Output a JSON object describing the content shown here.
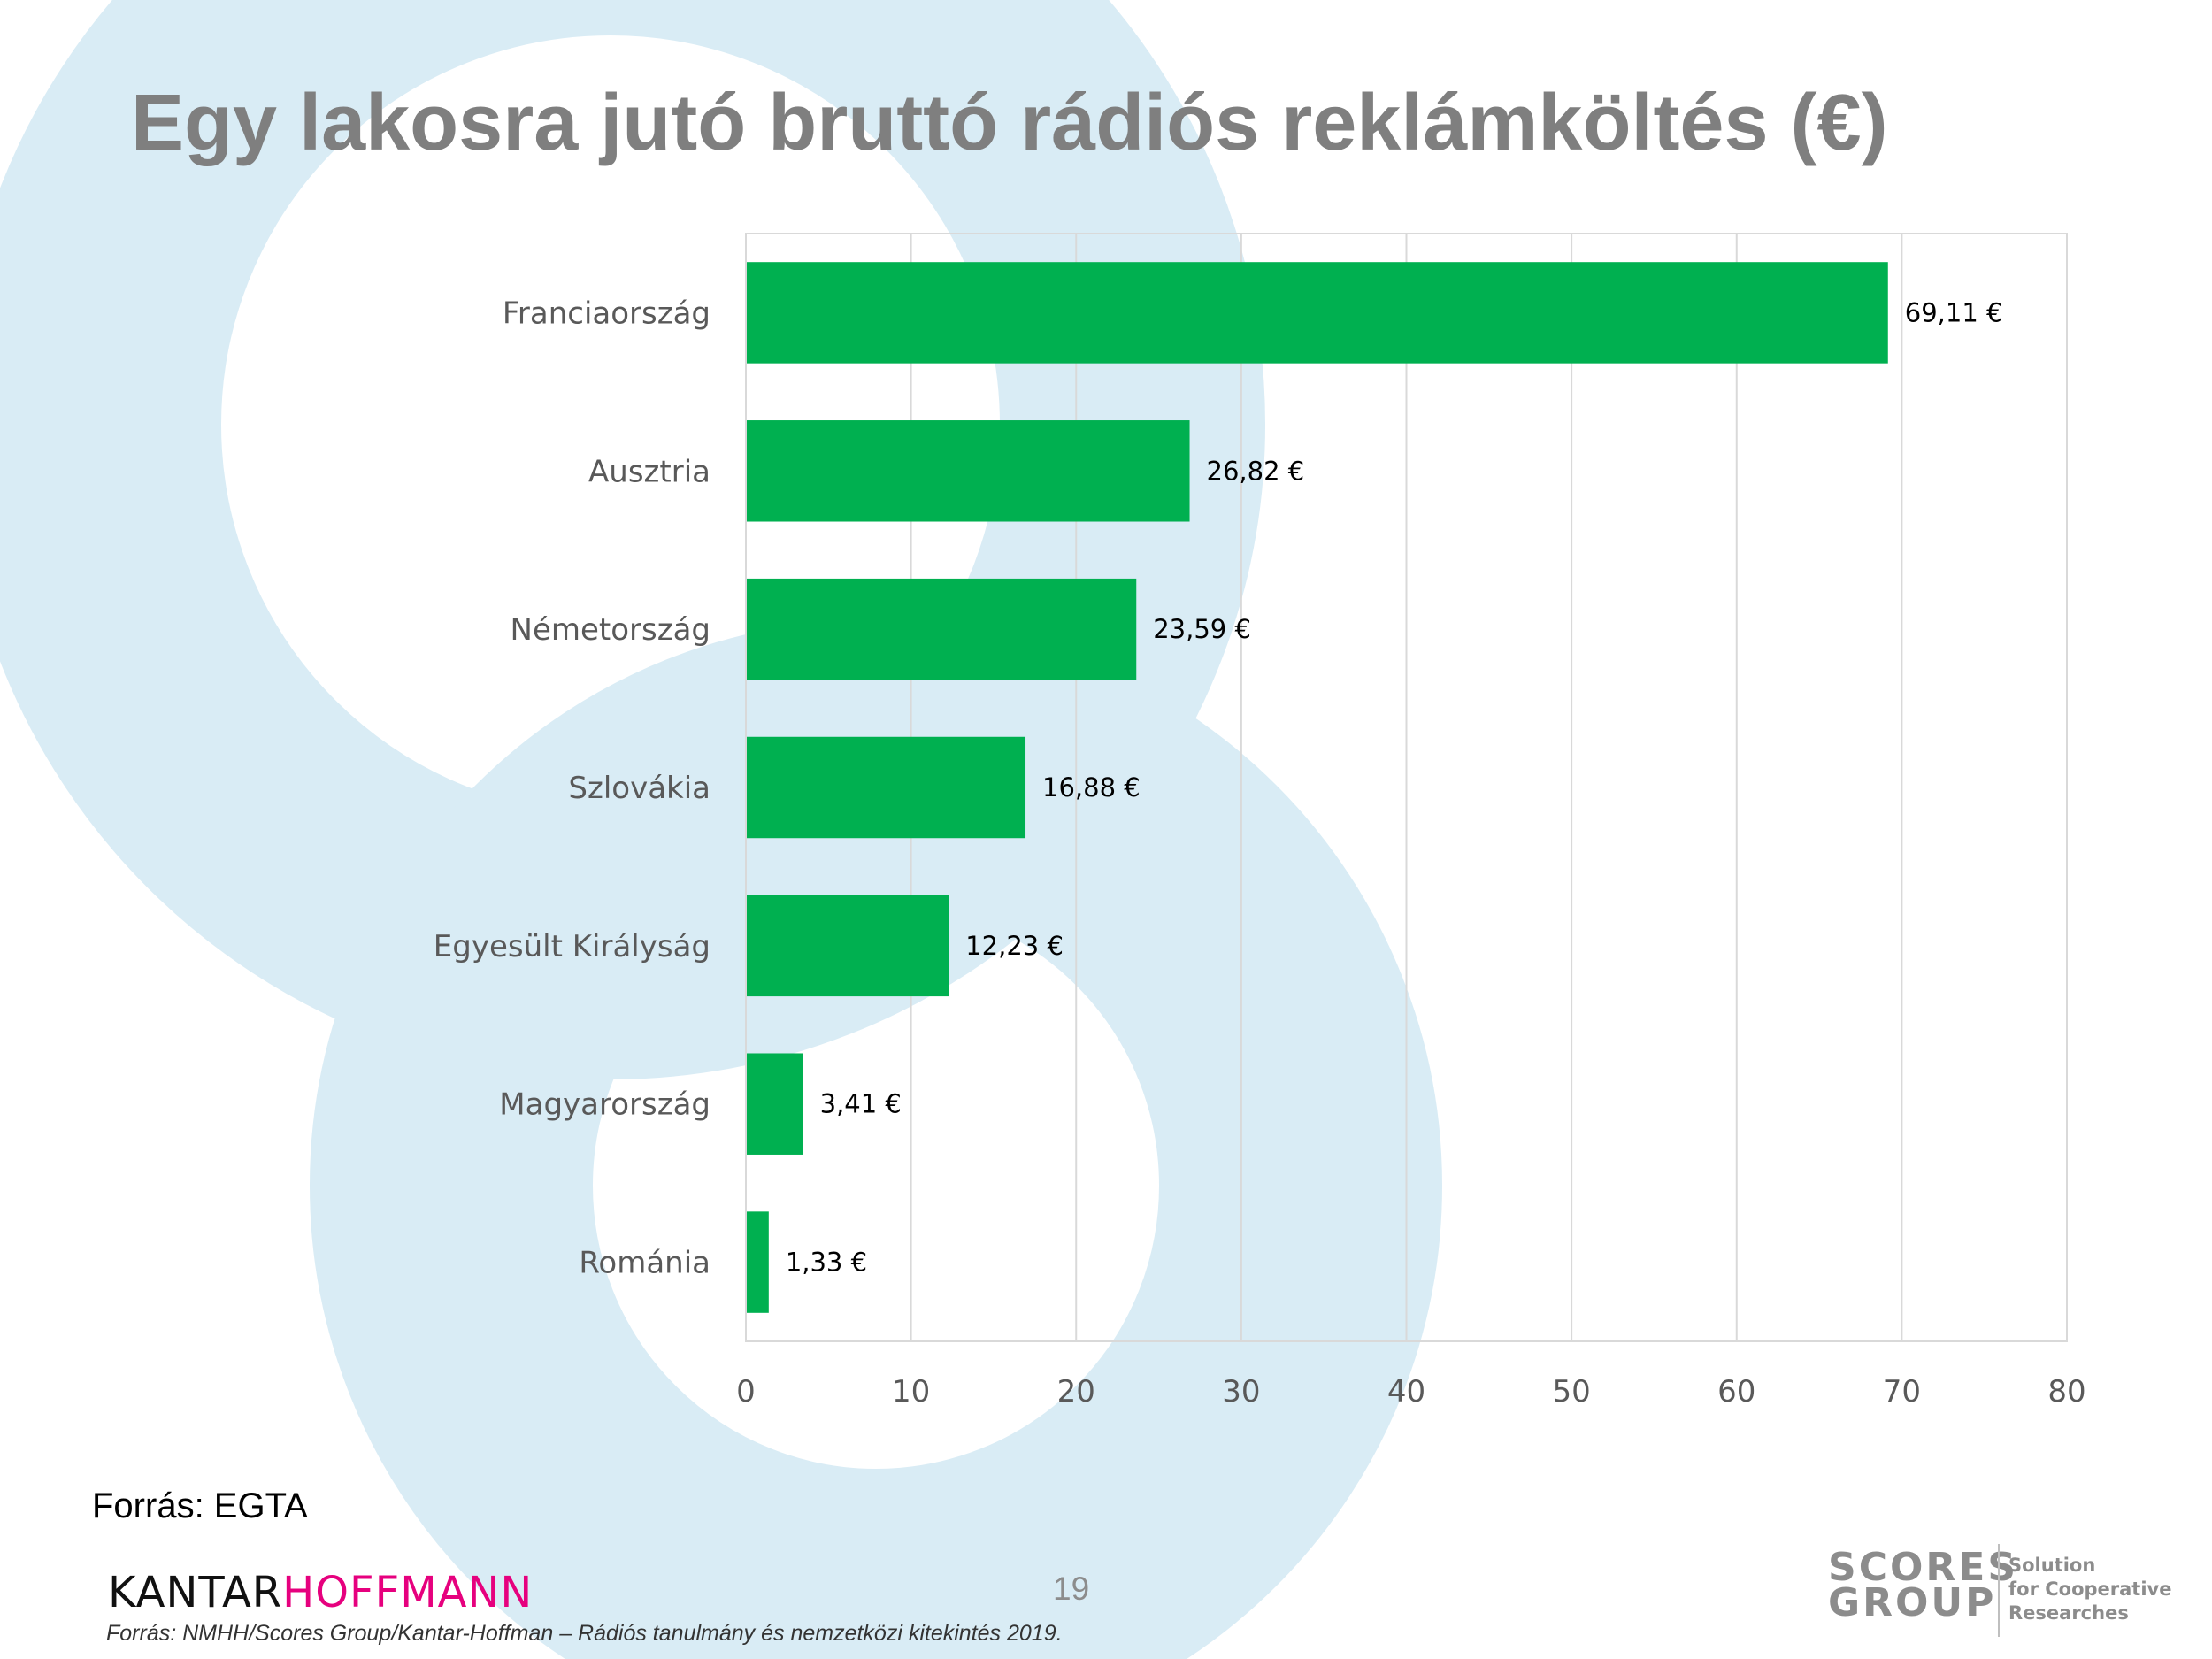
{
  "slide": {
    "title": "Egy lakosra jutó bruttó rádiós reklámköltés (€)",
    "source": "Forrás: EGTA",
    "page_number": "19",
    "footnote": "Forrás: NMHH/Scores Group/Kantar-Hoffman – Rádiós tanulmány és nemzetközi kitekintés 2019.",
    "logo_left": {
      "part1": "KANTAR",
      "part2": "HOFFMANN",
      "color1": "#111111",
      "color2": "#e6007e"
    },
    "logo_right": {
      "line1": "SCORES",
      "line2": "GROUP",
      "tagline1": "Solution",
      "tagline2": "for Cooperative",
      "tagline3": "Researches"
    },
    "background_color": "#d9ecf5"
  },
  "chart_data": {
    "type": "bar",
    "orientation": "horizontal",
    "categories": [
      "Franciaország",
      "Ausztria",
      "Németország",
      "Szlovákia",
      "Egyesült Királyság",
      "Magyarország",
      "Románia"
    ],
    "values": [
      69.11,
      26.82,
      23.59,
      16.88,
      12.23,
      3.41,
      1.33
    ],
    "data_labels": [
      "69,11 €",
      "26,82 €",
      "23,59 €",
      "16,88 €",
      "12,23 €",
      "3,41 €",
      "1,33 €"
    ],
    "xlim": [
      0,
      80
    ],
    "xticks": [
      0,
      10,
      20,
      30,
      40,
      50,
      60,
      70,
      80
    ],
    "grid": true,
    "bar_color": "#00b050",
    "grid_color": "#d9d9d9"
  }
}
